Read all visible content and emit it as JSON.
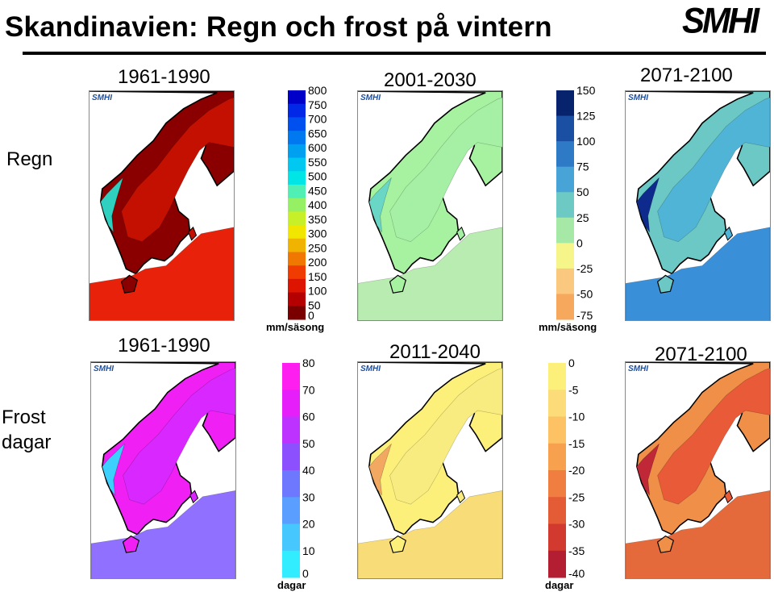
{
  "header": {
    "title": "Skandinavien: Regn och frost på vintern",
    "logo": "SMHI"
  },
  "rows": {
    "rain": "Regn",
    "frost_line1": "Frost",
    "frost_line2": "dagar"
  },
  "periods": {
    "rain_1": "1961-1990",
    "rain_2": "2001-2030",
    "rain_3": "2071-2100",
    "frost_1": "1961-1990",
    "frost_2": "2011-2040",
    "frost_3": "2071-2100"
  },
  "panel_logo": "SMHI",
  "scales": {
    "rain_abs": {
      "unit": "mm/säsong",
      "labels": [
        "800",
        "750",
        "700",
        "650",
        "600",
        "550",
        "500",
        "450",
        "400",
        "350",
        "300",
        "250",
        "200",
        "150",
        "100",
        "50",
        "0"
      ],
      "colors": [
        "#0000c8",
        "#0028e6",
        "#0050f0",
        "#0078f0",
        "#00a0f0",
        "#00c8f0",
        "#00e6e6",
        "#50f0b4",
        "#96f064",
        "#c8f028",
        "#f0e600",
        "#f0b400",
        "#f07800",
        "#f03c00",
        "#dc1400",
        "#b40000",
        "#7a0000"
      ]
    },
    "rain_change": {
      "unit": "mm/säsong",
      "labels": [
        "150",
        "125",
        "100",
        "75",
        "50",
        "25",
        "0",
        "-25",
        "-50",
        "-75"
      ],
      "colors": [
        "#08236e",
        "#1a4fa3",
        "#2f7ac6",
        "#48a4d6",
        "#6cc9c4",
        "#a6e9a6",
        "#f5f58a",
        "#fbc880",
        "#f6a85c"
      ]
    },
    "frost_abs": {
      "unit": "dagar",
      "labels": [
        "80",
        "70",
        "60",
        "50",
        "40",
        "30",
        "20",
        "10",
        "0"
      ],
      "colors": [
        "#ff1ef0",
        "#e61efa",
        "#be32ff",
        "#8c50ff",
        "#6e78ff",
        "#5a9eff",
        "#46c8ff",
        "#32ecff"
      ]
    },
    "frost_change": {
      "unit": "dagar",
      "labels": [
        "0",
        "-5",
        "-10",
        "-15",
        "-20",
        "-25",
        "-30",
        "-35",
        "-40"
      ],
      "colors": [
        "#fcf07a",
        "#fcdc78",
        "#fcc264",
        "#f7a04e",
        "#f07e40",
        "#e45c36",
        "#d23a30",
        "#b41e32"
      ]
    }
  },
  "maps": {
    "rain_1": {
      "sea": "#e8220a",
      "mid": "#c41000",
      "land": "#8a0000",
      "coast": "#2fd0c0"
    },
    "rain_2": {
      "sea": "#b8ecb0",
      "mid": "#a6f0a6",
      "land": "#a6f2a0",
      "coast": "#6ad6c6"
    },
    "rain_3": {
      "sea": "#3a90d8",
      "mid": "#50b4d6",
      "land": "#6cc8c4",
      "coast": "#0e2a8c"
    },
    "frost_1": {
      "sea": "#9070ff",
      "mid": "#d828ff",
      "land": "#f020f4",
      "coast": "#3cd0ff"
    },
    "frost_2": {
      "sea": "#f8dc78",
      "mid": "#f8ec80",
      "land": "#fcf07a",
      "coast": "#f2a860"
    },
    "frost_3": {
      "sea": "#e46a3c",
      "mid": "#e85a38",
      "land": "#f09048",
      "coast": "#c02838"
    }
  }
}
